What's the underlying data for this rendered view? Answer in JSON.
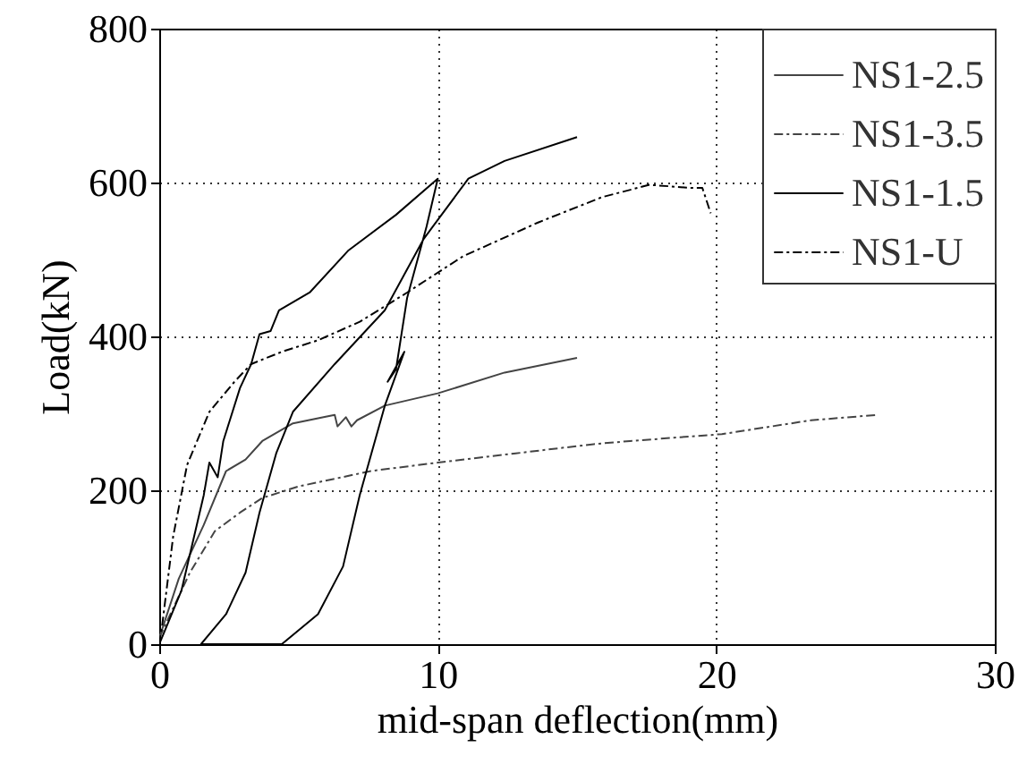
{
  "chart_data": {
    "type": "line",
    "xlabel": "mid-span deflection(mm)",
    "ylabel": "Load(kN)",
    "xlim": [
      0,
      30
    ],
    "xticks": [
      0,
      10,
      20,
      30
    ],
    "ylim": [
      0,
      800
    ],
    "yticks": [
      0,
      200,
      400,
      600,
      800
    ],
    "grid": true,
    "legend": "top right",
    "series": [
      {
        "name": "NS1-2.5",
        "color": "#444444",
        "line_style": "solid",
        "x": [
          0,
          0.7,
          1.6,
          2.4,
          3.1,
          3.7,
          4.8,
          5.9,
          6.3,
          6.4,
          6.7,
          6.9,
          7.1,
          8.1,
          10.0,
          12.4,
          15.0
        ],
        "values": [
          8,
          85,
          155,
          225,
          240,
          264,
          287,
          295,
          298,
          283,
          295,
          283,
          291,
          310,
          326,
          353,
          372
        ]
      },
      {
        "name": "NS1-3.5",
        "color": "#444444",
        "line_style": "dashdot",
        "x": [
          0,
          1.1,
          2.0,
          2.9,
          3.7,
          5.0,
          7.6,
          10.0,
          12.8,
          15.6,
          16.9,
          20.2,
          23.4,
          25.8
        ],
        "values": [
          8,
          93,
          147,
          171,
          190,
          205,
          225,
          236,
          248,
          260,
          264,
          273,
          291,
          298
        ]
      },
      {
        "name": "NS1-1.5",
        "color": "#000000",
        "line_style": "solid",
        "x": [
          0,
          0.8,
          1.6,
          1.8,
          2.1,
          2.3,
          2.9,
          3.3,
          3.6,
          4.0,
          4.3,
          5.4,
          6.8,
          8.5,
          10.0,
          9.6,
          8.9,
          8.5,
          8.2,
          8.8,
          8.1,
          7.2,
          6.6,
          5.7,
          4.4,
          1.5,
          2.4,
          3.1,
          3.6,
          4.2,
          4.8,
          6.3,
          8.1,
          9.5,
          11.1,
          12.4,
          15.0
        ],
        "values": [
          0,
          70,
          194,
          236,
          217,
          264,
          333,
          364,
          403,
          407,
          434,
          457,
          512,
          558,
          605,
          543,
          450,
          357,
          341,
          380,
          310,
          194,
          101,
          39,
          0,
          0,
          39,
          93,
          171,
          248,
          302,
          364,
          434,
          527,
          605,
          628,
          659
        ]
      },
      {
        "name": "NS1-U",
        "color": "#000000",
        "line_style": "dashdot",
        "x": [
          0,
          0.1,
          0.5,
          1.0,
          1.8,
          2.7,
          3.3,
          4.4,
          5.7,
          7.2,
          8.9,
          10.9,
          13.6,
          15.9,
          17.6,
          19.1,
          19.5,
          19.8
        ],
        "values": [
          0,
          23,
          140,
          233,
          302,
          341,
          364,
          380,
          395,
          419,
          457,
          504,
          548,
          581,
          597,
          593,
          593,
          560
        ]
      }
    ]
  }
}
